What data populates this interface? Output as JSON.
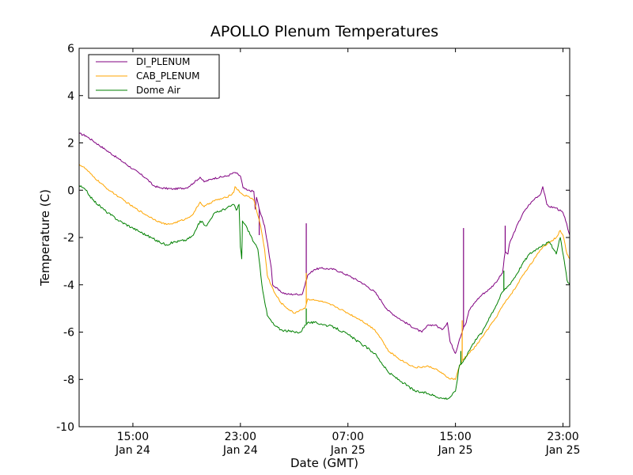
{
  "chart_data": {
    "type": "line",
    "title": "APOLLO Plenum Temperatures",
    "xlabel": "Date (GMT)",
    "ylabel": "Temperature (C)",
    "x_unit": "hours since Jan 24 11:00 GMT",
    "xlim": [
      0,
      36.5
    ],
    "ylim": [
      -10,
      6
    ],
    "yticks": [
      6,
      4,
      2,
      0,
      -2,
      -4,
      -6,
      -8,
      -10
    ],
    "ytick_labels": [
      "6",
      "4",
      "2",
      "0",
      "-2",
      "-4",
      "-6",
      "-8",
      "-10"
    ],
    "xticks": [
      {
        "x": 4,
        "time": "15:00",
        "date": "Jan 24"
      },
      {
        "x": 12,
        "time": "23:00",
        "date": "Jan 24"
      },
      {
        "x": 20,
        "time": "07:00",
        "date": "Jan 25"
      },
      {
        "x": 28,
        "time": "15:00",
        "date": "Jan 25"
      },
      {
        "x": 36,
        "time": "23:00",
        "date": "Jan 25"
      }
    ],
    "grid": false,
    "legend_position": "top-left",
    "series": [
      {
        "name": "DI_PLENUM",
        "color": "#800080",
        "noise": 0.04,
        "points": [
          [
            0,
            2.4
          ],
          [
            0.5,
            2.3
          ],
          [
            1,
            2.1
          ],
          [
            2,
            1.7
          ],
          [
            3,
            1.3
          ],
          [
            4,
            0.9
          ],
          [
            5,
            0.5
          ],
          [
            5.5,
            0.2
          ],
          [
            6,
            0.1
          ],
          [
            7,
            0.05
          ],
          [
            8,
            0.1
          ],
          [
            8.5,
            0.3
          ],
          [
            9,
            0.55
          ],
          [
            9.3,
            0.35
          ],
          [
            10,
            0.5
          ],
          [
            11,
            0.6
          ],
          [
            11.6,
            0.75
          ],
          [
            12,
            0.6
          ],
          [
            12.2,
            0.1
          ],
          [
            12.5,
            0.0
          ],
          [
            13,
            -0.05
          ],
          [
            13.1,
            -0.8
          ],
          [
            13.2,
            -0.3
          ],
          [
            13.4,
            -0.8
          ],
          [
            13.8,
            -1.5
          ],
          [
            14.3,
            -3.3
          ],
          [
            14.4,
            -4.0
          ],
          [
            15,
            -4.3
          ],
          [
            15.5,
            -4.4
          ],
          [
            16,
            -4.4
          ],
          [
            16.6,
            -4.4
          ],
          [
            17,
            -3.6
          ],
          [
            17.5,
            -3.35
          ],
          [
            18,
            -3.3
          ],
          [
            19,
            -3.35
          ],
          [
            20,
            -3.6
          ],
          [
            21,
            -3.9
          ],
          [
            22,
            -4.3
          ],
          [
            22.5,
            -4.7
          ],
          [
            23,
            -5.1
          ],
          [
            24,
            -5.5
          ],
          [
            25,
            -5.85
          ],
          [
            25.5,
            -6.0
          ],
          [
            26,
            -5.7
          ],
          [
            26.5,
            -5.7
          ],
          [
            27,
            -5.9
          ],
          [
            27.4,
            -5.6
          ],
          [
            27.6,
            -6.4
          ],
          [
            28,
            -6.9
          ],
          [
            28.3,
            -6.3
          ],
          [
            28.6,
            -5.8
          ],
          [
            28.8,
            -5.6
          ],
          [
            29,
            -5.1
          ],
          [
            29.5,
            -4.7
          ],
          [
            30,
            -4.4
          ],
          [
            30.5,
            -4.2
          ],
          [
            31,
            -3.9
          ],
          [
            31.5,
            -3.5
          ],
          [
            31.7,
            -2.6
          ],
          [
            31.9,
            -2.7
          ],
          [
            32,
            -2.3
          ],
          [
            32.5,
            -1.6
          ],
          [
            33,
            -1.0
          ],
          [
            33.5,
            -0.6
          ],
          [
            34,
            -0.3
          ],
          [
            34.3,
            -0.2
          ],
          [
            34.5,
            0.15
          ],
          [
            34.8,
            -0.6
          ],
          [
            35,
            -0.7
          ],
          [
            35.5,
            -0.75
          ],
          [
            36,
            -0.95
          ],
          [
            36.2,
            -1.3
          ],
          [
            36.5,
            -1.9
          ]
        ],
        "spikes": [
          [
            13.4,
            -1.9
          ],
          [
            16.9,
            -1.4
          ],
          [
            28.6,
            -1.6
          ],
          [
            31.7,
            -1.5
          ]
        ]
      },
      {
        "name": "CAB_PLENUM",
        "color": "#ffa500",
        "noise": 0.035,
        "points": [
          [
            0,
            1.1
          ],
          [
            0.5,
            0.9
          ],
          [
            1,
            0.6
          ],
          [
            2,
            0.1
          ],
          [
            3,
            -0.3
          ],
          [
            4,
            -0.7
          ],
          [
            5,
            -1.05
          ],
          [
            6,
            -1.35
          ],
          [
            6.5,
            -1.45
          ],
          [
            7,
            -1.4
          ],
          [
            8,
            -1.2
          ],
          [
            8.5,
            -1.0
          ],
          [
            9,
            -0.5
          ],
          [
            9.3,
            -0.7
          ],
          [
            10,
            -0.45
          ],
          [
            11,
            -0.3
          ],
          [
            11.5,
            -0.1
          ],
          [
            11.6,
            0.15
          ],
          [
            12,
            -0.1
          ],
          [
            12.2,
            -0.2
          ],
          [
            12.5,
            -0.25
          ],
          [
            13,
            -0.4
          ],
          [
            13.2,
            -0.85
          ],
          [
            13.5,
            -1.5
          ],
          [
            13.8,
            -2.5
          ],
          [
            14,
            -3.6
          ],
          [
            14.5,
            -4.3
          ],
          [
            15,
            -4.75
          ],
          [
            15.5,
            -5.0
          ],
          [
            16,
            -5.2
          ],
          [
            16.5,
            -5.05
          ],
          [
            16.8,
            -5.0
          ],
          [
            17,
            -4.6
          ],
          [
            17.5,
            -4.65
          ],
          [
            18,
            -4.7
          ],
          [
            19,
            -4.9
          ],
          [
            20,
            -5.2
          ],
          [
            21,
            -5.5
          ],
          [
            22,
            -5.9
          ],
          [
            22.5,
            -6.3
          ],
          [
            23,
            -6.8
          ],
          [
            24,
            -7.2
          ],
          [
            25,
            -7.5
          ],
          [
            26,
            -7.45
          ],
          [
            26.5,
            -7.55
          ],
          [
            27,
            -7.75
          ],
          [
            27.5,
            -7.95
          ],
          [
            28,
            -8.0
          ],
          [
            28.2,
            -7.6
          ],
          [
            28.5,
            -7.2
          ],
          [
            29,
            -6.9
          ],
          [
            29.5,
            -6.6
          ],
          [
            30,
            -6.2
          ],
          [
            30.5,
            -5.8
          ],
          [
            31,
            -5.4
          ],
          [
            31.5,
            -4.9
          ],
          [
            32,
            -4.5
          ],
          [
            32.5,
            -4.1
          ],
          [
            33,
            -3.6
          ],
          [
            33.5,
            -3.2
          ],
          [
            34,
            -2.8
          ],
          [
            34.5,
            -2.4
          ],
          [
            35,
            -2.2
          ],
          [
            35.5,
            -2.0
          ],
          [
            35.8,
            -1.7
          ],
          [
            36,
            -1.9
          ],
          [
            36.3,
            -2.7
          ],
          [
            36.5,
            -2.9
          ]
        ],
        "spikes": [
          [
            16.9,
            -3.5
          ],
          [
            28.5,
            -5.5
          ]
        ]
      },
      {
        "name": "Dome Air",
        "color": "#008000",
        "noise": 0.05,
        "points": [
          [
            0,
            0.2
          ],
          [
            0.5,
            0.0
          ],
          [
            1,
            -0.4
          ],
          [
            2,
            -0.9
          ],
          [
            3,
            -1.3
          ],
          [
            4,
            -1.6
          ],
          [
            5,
            -1.9
          ],
          [
            6,
            -2.2
          ],
          [
            6.5,
            -2.3
          ],
          [
            7,
            -2.2
          ],
          [
            8,
            -2.1
          ],
          [
            8.5,
            -1.9
          ],
          [
            9,
            -1.3
          ],
          [
            9.5,
            -1.5
          ],
          [
            10,
            -1.0
          ],
          [
            11,
            -0.75
          ],
          [
            11.5,
            -0.6
          ],
          [
            11.7,
            -0.85
          ],
          [
            11.9,
            -0.6
          ],
          [
            12,
            -2.4
          ],
          [
            12.1,
            -2.9
          ],
          [
            12.15,
            -1.3
          ],
          [
            12.5,
            -1.6
          ],
          [
            13,
            -2.2
          ],
          [
            13.3,
            -2.5
          ],
          [
            13.6,
            -4.0
          ],
          [
            14,
            -5.3
          ],
          [
            14.5,
            -5.7
          ],
          [
            15,
            -5.9
          ],
          [
            16,
            -6.0
          ],
          [
            16.5,
            -6.0
          ],
          [
            16.8,
            -5.7
          ],
          [
            17,
            -5.6
          ],
          [
            17.5,
            -5.6
          ],
          [
            18,
            -5.65
          ],
          [
            19,
            -5.8
          ],
          [
            20,
            -6.1
          ],
          [
            21,
            -6.5
          ],
          [
            22,
            -6.9
          ],
          [
            22.5,
            -7.3
          ],
          [
            23,
            -7.7
          ],
          [
            24,
            -8.1
          ],
          [
            25,
            -8.5
          ],
          [
            26,
            -8.6
          ],
          [
            27,
            -8.8
          ],
          [
            27.5,
            -8.8
          ],
          [
            28,
            -8.5
          ],
          [
            28.3,
            -7.4
          ],
          [
            28.5,
            -7.3
          ],
          [
            29,
            -6.8
          ],
          [
            29.5,
            -6.3
          ],
          [
            30,
            -6.0
          ],
          [
            30.5,
            -5.4
          ],
          [
            31,
            -4.9
          ],
          [
            31.5,
            -4.3
          ],
          [
            32,
            -4.0
          ],
          [
            32.5,
            -3.6
          ],
          [
            33,
            -3.1
          ],
          [
            33.5,
            -2.7
          ],
          [
            34,
            -2.5
          ],
          [
            34.5,
            -2.3
          ],
          [
            35,
            -2.2
          ],
          [
            35.5,
            -2.7
          ],
          [
            35.8,
            -2.0
          ],
          [
            36.1,
            -3.0
          ],
          [
            36.3,
            -3.8
          ],
          [
            36.5,
            -4.0
          ]
        ],
        "spikes": [
          [
            16.9,
            -5.0
          ],
          [
            28.4,
            -6.8
          ],
          [
            31.6,
            -3.4
          ]
        ]
      }
    ]
  }
}
